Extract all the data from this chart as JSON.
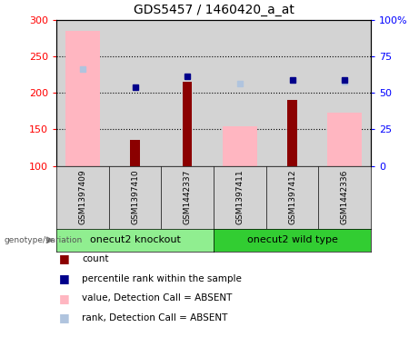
{
  "title": "GDS5457 / 1460420_a_at",
  "samples": [
    "GSM1397409",
    "GSM1397410",
    "GSM1442337",
    "GSM1397411",
    "GSM1397412",
    "GSM1442336"
  ],
  "count_values": [
    null,
    136,
    215,
    null,
    190,
    null
  ],
  "value_absent": [
    285,
    null,
    null,
    154,
    null,
    173
  ],
  "rank_absent": [
    233,
    null,
    null,
    213,
    null,
    215
  ],
  "percentile_rank": [
    null,
    208,
    222,
    null,
    217,
    218
  ],
  "ylim_left": [
    100,
    300
  ],
  "yticks_left": [
    100,
    150,
    200,
    250,
    300
  ],
  "ytick_labels_left": [
    "100",
    "150",
    "200",
    "250",
    "300"
  ],
  "ytick_labels_right": [
    "0",
    "25",
    "50",
    "75",
    "100%"
  ],
  "group1_label": "onecut2 knockout",
  "group2_label": "onecut2 wild type",
  "group1_color": "#90EE90",
  "group2_color": "#32CD32",
  "bar_color_count": "#8B0000",
  "bar_color_absent_value": "#FFB6C1",
  "dot_color_percentile": "#00008B",
  "dot_color_rank_absent": "#B0C4DE",
  "bg_axes": "#D3D3D3",
  "legend_items": [
    {
      "color": "#8B0000",
      "label": "count"
    },
    {
      "color": "#00008B",
      "label": "percentile rank within the sample"
    },
    {
      "color": "#FFB6C1",
      "label": "value, Detection Call = ABSENT"
    },
    {
      "color": "#B0C4DE",
      "label": "rank, Detection Call = ABSENT"
    }
  ]
}
